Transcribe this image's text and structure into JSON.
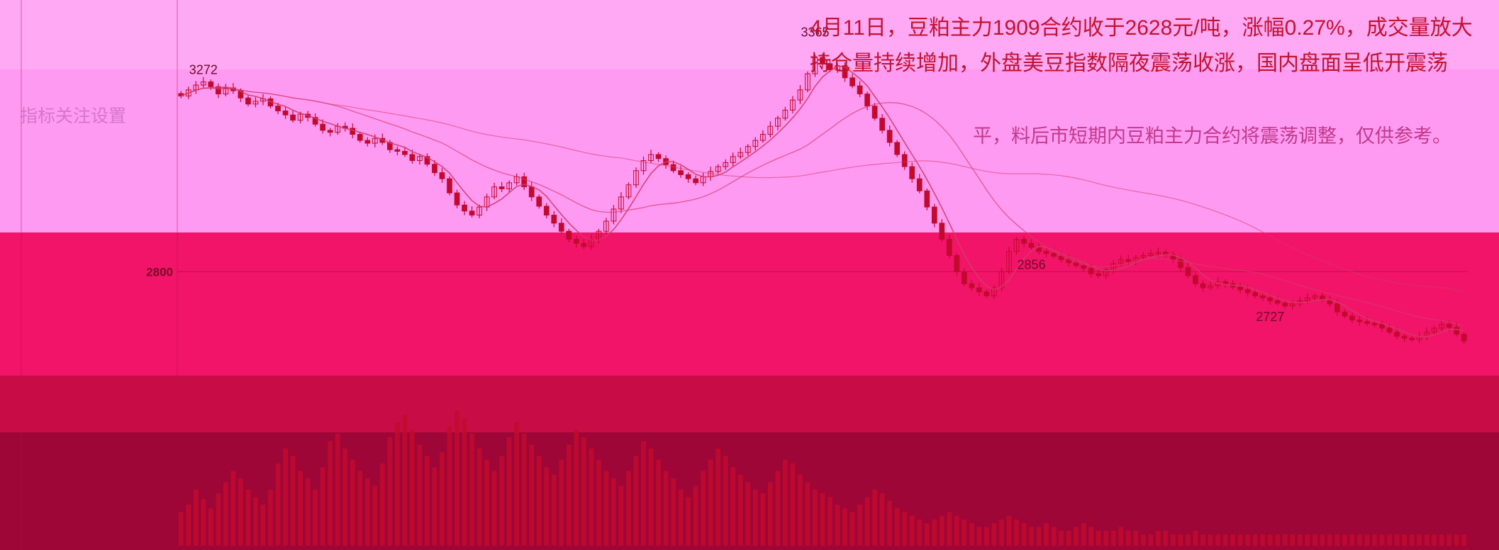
{
  "headline": {
    "line1": "4月11日，豆粕主力1909合约收于2628元/吨，涨幅0.27%，成交量放大",
    "line2": "持仓量持续增加，外盘美豆指数隔夜震荡收涨，国内盘面呈低开震荡",
    "line3": "平，料后市短期内豆粕主力合约将震荡调整，仅供参考。"
  },
  "faint_label": "指标关注设置",
  "colors": {
    "up": "#c20a2e",
    "down": "#c20a2e",
    "ma_line": "#d43a6a",
    "reference_line": "#9e0638",
    "volume": "#c20a2e",
    "headline": "#c1122f"
  },
  "chart_data": {
    "type": "candlestick",
    "title": "",
    "price_labels": [
      {
        "label": "3365",
        "value": 3365,
        "kind": "high"
      },
      {
        "label": "3272",
        "value": 3272,
        "kind": "high"
      },
      {
        "label": "2856",
        "value": 2856,
        "kind": "low"
      },
      {
        "label": "2727",
        "value": 2727,
        "kind": "low"
      }
    ],
    "axis_ticks": [
      {
        "label": "2800",
        "value": 2800
      }
    ],
    "ylim": [
      2560,
      3420
    ],
    "series": [
      {
        "kind": "close",
        "values": [
          3235,
          3250,
          3262,
          3270,
          3258,
          3240,
          3255,
          3248,
          3230,
          3215,
          3222,
          3228,
          3210,
          3198,
          3188,
          3175,
          3190,
          3182,
          3165,
          3150,
          3145,
          3160,
          3155,
          3140,
          3125,
          3118,
          3130,
          3120,
          3102,
          3098,
          3090,
          3075,
          3085,
          3066,
          3045,
          3030,
          2995,
          2965,
          2950,
          2940,
          2960,
          2985,
          3010,
          3005,
          3020,
          3035,
          3010,
          2985,
          2962,
          2940,
          2920,
          2900,
          2880,
          2870,
          2862,
          2880,
          2900,
          2925,
          2955,
          2985,
          3015,
          3050,
          3075,
          3090,
          3080,
          3065,
          3050,
          3040,
          3030,
          3020,
          3035,
          3048,
          3060,
          3070,
          3085,
          3095,
          3110,
          3125,
          3140,
          3160,
          3180,
          3200,
          3225,
          3250,
          3290,
          3330,
          3315,
          3300,
          3310,
          3280,
          3260,
          3240,
          3210,
          3180,
          3150,
          3120,
          3090,
          3060,
          3030,
          3000,
          2960,
          2920,
          2880,
          2840,
          2800,
          2770,
          2760,
          2750,
          2740,
          2760,
          2800,
          2850,
          2880,
          2870,
          2860,
          2850,
          2845,
          2838,
          2830,
          2822,
          2815,
          2808,
          2795,
          2790,
          2805,
          2820,
          2830,
          2825,
          2835,
          2840,
          2845,
          2848,
          2842,
          2830,
          2810,
          2790,
          2770,
          2760,
          2765,
          2775,
          2770,
          2762,
          2755,
          2748,
          2740,
          2735,
          2728,
          2722,
          2715,
          2720,
          2728,
          2735,
          2740,
          2730,
          2720,
          2700,
          2690,
          2680,
          2676,
          2672,
          2670,
          2660,
          2650,
          2640,
          2635,
          2632,
          2640,
          2650,
          2660,
          2670,
          2662,
          2645,
          2628
        ]
      }
    ],
    "volume": [
      18,
      22,
      30,
      25,
      20,
      28,
      34,
      40,
      36,
      30,
      26,
      22,
      30,
      44,
      52,
      48,
      40,
      36,
      30,
      42,
      56,
      60,
      52,
      46,
      40,
      36,
      32,
      44,
      58,
      66,
      70,
      62,
      54,
      48,
      42,
      50,
      64,
      72,
      68,
      60,
      52,
      46,
      40,
      48,
      58,
      66,
      60,
      54,
      48,
      42,
      38,
      46,
      54,
      62,
      58,
      52,
      46,
      40,
      36,
      32,
      40,
      48,
      56,
      52,
      46,
      40,
      36,
      30,
      26,
      32,
      40,
      46,
      52,
      48,
      42,
      38,
      34,
      30,
      28,
      34,
      40,
      46,
      44,
      38,
      34,
      30,
      28,
      26,
      22,
      20,
      18,
      22,
      26,
      30,
      28,
      24,
      20,
      18,
      16,
      14,
      12,
      14,
      16,
      18,
      16,
      14,
      12,
      10,
      10,
      12,
      14,
      16,
      14,
      12,
      10,
      10,
      12,
      10,
      8,
      8,
      10,
      12,
      10,
      8,
      8,
      8,
      10,
      8,
      8,
      6,
      6,
      8,
      8,
      6,
      6,
      6,
      8,
      6,
      6,
      6,
      6,
      6,
      6,
      6,
      6,
      6,
      6,
      6,
      6,
      6,
      6,
      6,
      6,
      6,
      6,
      6,
      6,
      6,
      6,
      6,
      6,
      6,
      6,
      6,
      6,
      6,
      6,
      6,
      6,
      6,
      6,
      6,
      6
    ],
    "grid": false
  }
}
